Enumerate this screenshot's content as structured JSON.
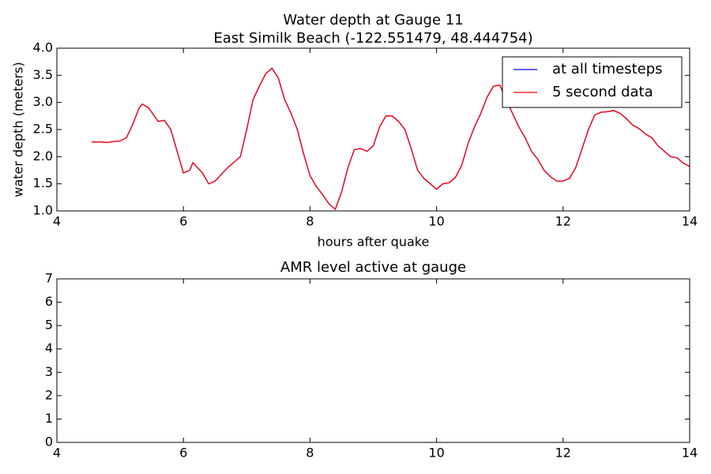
{
  "chart_data": [
    {
      "type": "line",
      "title": "Water depth at Gauge 11",
      "subtitle": "East Similk Beach  (-122.551479, 48.444754)",
      "xlabel": "hours after quake",
      "ylabel": "water depth (meters)",
      "xlim": [
        4,
        14
      ],
      "xticks": [
        4,
        6,
        8,
        10,
        12,
        14
      ],
      "ylim": [
        1,
        4
      ],
      "yticks": [
        {
          "value": 1,
          "label": "1.0"
        },
        1.5,
        {
          "value": 2,
          "label": "2.0"
        },
        2.5,
        {
          "value": 3,
          "label": "3.0"
        },
        3.5,
        {
          "value": 4,
          "label": "4.0"
        }
      ],
      "legend": "upper right",
      "x": [
        4.55,
        4.7,
        4.8,
        4.9,
        5.0,
        5.1,
        5.2,
        5.3,
        5.35,
        5.45,
        5.6,
        5.7,
        5.8,
        5.9,
        6.0,
        6.1,
        6.15,
        6.3,
        6.4,
        6.5,
        6.7,
        6.9,
        7.0,
        7.1,
        7.2,
        7.3,
        7.4,
        7.5,
        7.6,
        7.7,
        7.8,
        7.9,
        8.0,
        8.1,
        8.2,
        8.3,
        8.4,
        8.5,
        8.6,
        8.7,
        8.8,
        8.9,
        9.0,
        9.1,
        9.2,
        9.3,
        9.4,
        9.5,
        9.6,
        9.7,
        9.8,
        9.9,
        10.0,
        10.1,
        10.2,
        10.3,
        10.4,
        10.5,
        10.6,
        10.7,
        10.8,
        10.9,
        11.0,
        11.1,
        11.2,
        11.3,
        11.4,
        11.5,
        11.6,
        11.7,
        11.8,
        11.9,
        12.0,
        12.1,
        12.2,
        12.3,
        12.4,
        12.5,
        12.6,
        12.7,
        12.8,
        12.9,
        13.0,
        13.1,
        13.2,
        13.3,
        13.4,
        13.5,
        13.6,
        13.7,
        13.8,
        13.9,
        14.0
      ],
      "series": [
        {
          "name": "at all timesteps",
          "color": "#0000ff",
          "values": [
            2.27,
            2.27,
            2.26,
            2.28,
            2.29,
            2.35,
            2.6,
            2.9,
            2.97,
            2.9,
            2.65,
            2.67,
            2.5,
            2.1,
            1.7,
            1.75,
            1.89,
            1.7,
            1.5,
            1.55,
            1.8,
            2.0,
            2.5,
            3.05,
            3.3,
            3.53,
            3.63,
            3.45,
            3.05,
            2.8,
            2.5,
            2.05,
            1.65,
            1.45,
            1.3,
            1.13,
            1.03,
            1.35,
            1.8,
            2.13,
            2.15,
            2.1,
            2.2,
            2.55,
            2.75,
            2.75,
            2.65,
            2.5,
            2.15,
            1.75,
            1.6,
            1.5,
            1.4,
            1.5,
            1.52,
            1.62,
            1.85,
            2.25,
            2.55,
            2.8,
            3.1,
            3.3,
            3.32,
            3.05,
            2.8,
            2.55,
            2.35,
            2.1,
            1.95,
            1.75,
            1.63,
            1.55,
            1.55,
            1.6,
            1.8,
            2.15,
            2.5,
            2.77,
            2.82,
            2.83,
            2.85,
            2.8,
            2.7,
            2.58,
            2.52,
            2.42,
            2.35,
            2.2,
            2.1,
            2.0,
            1.98,
            1.88,
            1.82
          ]
        },
        {
          "name": "5 second data",
          "color": "#ff0000",
          "values": [
            2.27,
            2.27,
            2.26,
            2.28,
            2.29,
            2.35,
            2.6,
            2.9,
            2.97,
            2.9,
            2.65,
            2.67,
            2.5,
            2.1,
            1.7,
            1.75,
            1.89,
            1.7,
            1.5,
            1.55,
            1.8,
            2.0,
            2.5,
            3.05,
            3.3,
            3.53,
            3.63,
            3.45,
            3.05,
            2.8,
            2.5,
            2.05,
            1.65,
            1.45,
            1.3,
            1.13,
            1.03,
            1.35,
            1.8,
            2.13,
            2.15,
            2.1,
            2.2,
            2.55,
            2.75,
            2.75,
            2.65,
            2.5,
            2.15,
            1.75,
            1.6,
            1.5,
            1.4,
            1.5,
            1.52,
            1.62,
            1.85,
            2.25,
            2.55,
            2.8,
            3.1,
            3.3,
            3.32,
            3.05,
            2.8,
            2.55,
            2.35,
            2.1,
            1.95,
            1.75,
            1.63,
            1.55,
            1.55,
            1.6,
            1.8,
            2.15,
            2.5,
            2.77,
            2.82,
            2.83,
            2.85,
            2.8,
            2.7,
            2.58,
            2.52,
            2.42,
            2.35,
            2.2,
            2.1,
            2.0,
            1.98,
            1.88,
            1.82
          ]
        }
      ]
    },
    {
      "type": "line",
      "title": "AMR level active at gauge",
      "xlim": [
        4,
        14
      ],
      "xticks": [
        4,
        6,
        8,
        10,
        12,
        14
      ],
      "ylim": [
        0,
        7
      ],
      "yticks": [
        0,
        1,
        2,
        3,
        4,
        5,
        6,
        7
      ],
      "series": []
    }
  ]
}
